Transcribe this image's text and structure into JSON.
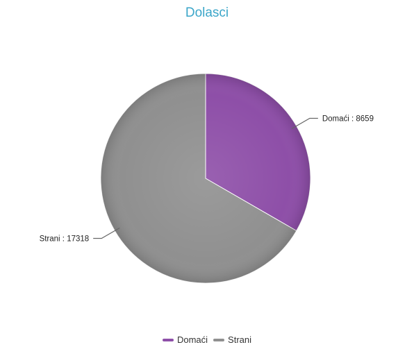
{
  "chart_data": {
    "type": "pie",
    "title": "Dolasci",
    "slices": [
      {
        "name": "Domaći",
        "value": 8659,
        "label": "Domaći : 8659",
        "color": "#8e4fa8"
      },
      {
        "name": "Strani",
        "value": 17318,
        "label": "Strani : 17318",
        "color": "#909090"
      }
    ],
    "start_angle_deg": 0,
    "direction": "clockwise",
    "legend": "bottom-center",
    "title_color": "#3ba6c9"
  }
}
